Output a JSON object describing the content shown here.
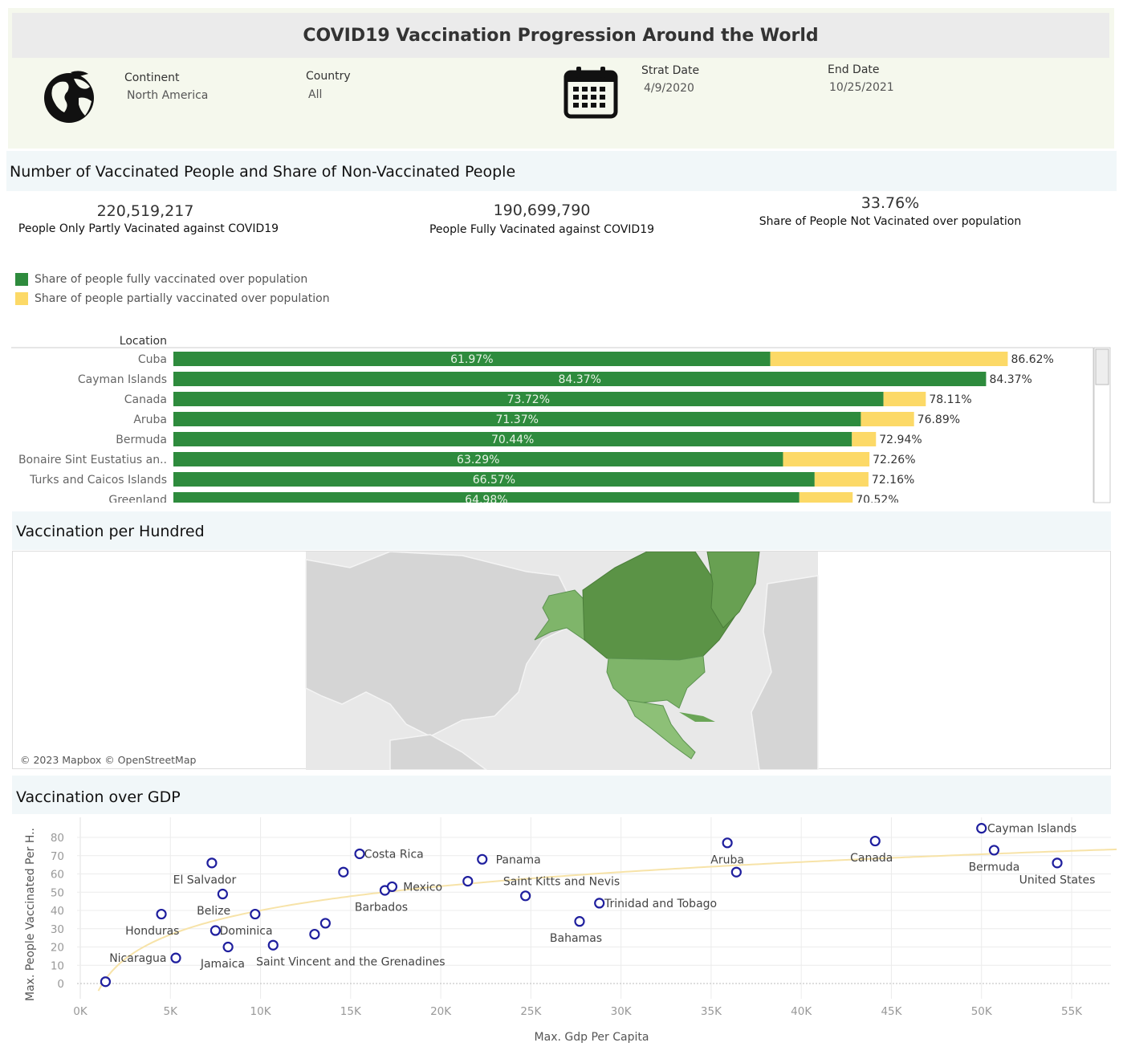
{
  "header": {
    "title": "COVID19 Vaccination Progression Around the World",
    "filters": {
      "continent_label": "Continent",
      "continent_value": "North America",
      "country_label": "Country",
      "country_value": "All",
      "start_label": "Strat Date",
      "start_value": "4/9/2020",
      "end_label": "End Date",
      "end_value": "10/25/2021"
    },
    "icons": [
      "globe-icon",
      "calendar-icon"
    ]
  },
  "section1": {
    "title": "Number  of Vaccinated People  and Share of Non-Vaccinated  People",
    "kpis": [
      {
        "value": "220,519,217",
        "caption": "People Only Partly Vacinated against COVID19"
      },
      {
        "value": "190,699,790",
        "caption": "People Fully Vacinated against COVID19"
      },
      {
        "value": "33.76%",
        "caption": "Share of People Not Vacinated over population"
      }
    ],
    "legend": [
      {
        "label": "Share of people fully vaccinated over population",
        "color": "#2e8b3d"
      },
      {
        "label": "Share of people partially vaccinated over population",
        "color": "#fcd967"
      }
    ]
  },
  "chart_data": [
    {
      "type": "bar",
      "orientation": "horizontal",
      "stacked": true,
      "axis_header": "Location",
      "categories": [
        "Cuba",
        "Cayman Islands",
        "Canada",
        "Aruba",
        "Bermuda",
        "Bonaire Sint Eustatius an..",
        "Turks and Caicos Islands",
        "Greenland"
      ],
      "series": [
        {
          "name": "Share of people fully vaccinated over population",
          "values": [
            61.97,
            84.37,
            73.72,
            71.37,
            70.44,
            63.29,
            66.57,
            64.98
          ],
          "labels": [
            "61.97%",
            "84.37%",
            "73.72%",
            "71.37%",
            "70.44%",
            "63.29%",
            "66.57%",
            "64.98%"
          ],
          "color": "#2e8b3d"
        },
        {
          "name": "Share of people partially vaccinated over population",
          "totals": [
            86.62,
            84.37,
            78.11,
            76.89,
            72.94,
            72.26,
            72.16,
            70.52
          ],
          "total_labels": [
            "86.62%",
            "84.37%",
            "78.11%",
            "76.89%",
            "72.94%",
            "72.26%",
            "72.16%",
            "70.52%"
          ],
          "color": "#fcd967"
        }
      ],
      "xlim": [
        0,
        100
      ]
    },
    {
      "type": "scatter",
      "title": "Vaccination over GDP",
      "xlabel": "Max. Gdp Per Capita",
      "ylabel": "Max. People Vaccinated Per H..",
      "xlim": [
        0,
        57000
      ],
      "ylim": [
        -5,
        87
      ],
      "xticks": [
        0,
        5000,
        10000,
        15000,
        20000,
        25000,
        30000,
        35000,
        40000,
        45000,
        50000,
        55000
      ],
      "xtick_labels": [
        "0K",
        "5K",
        "10K",
        "15K",
        "20K",
        "25K",
        "30K",
        "35K",
        "40K",
        "45K",
        "50K",
        "55K"
      ],
      "yticks": [
        0,
        10,
        20,
        30,
        40,
        50,
        60,
        70,
        80
      ],
      "yticks_labels": [
        "0",
        "10",
        "20",
        "30",
        "40",
        "50",
        "60",
        "70",
        "80"
      ],
      "trend": "logarithmic",
      "trend_color": "#f7e3a8",
      "point_color": "#1f1f9e",
      "points": [
        {
          "x": 1400,
          "y": 1,
          "label": ""
        },
        {
          "x": 5300,
          "y": 14,
          "label": ""
        },
        {
          "x": 4500,
          "y": 38,
          "label": ""
        },
        {
          "x": 7300,
          "y": 66,
          "label": ""
        },
        {
          "x": 7500,
          "y": 29,
          "label": ""
        },
        {
          "x": 7900,
          "y": 49,
          "label": ""
        },
        {
          "x": 8200,
          "y": 20,
          "label": ""
        },
        {
          "x": 9700,
          "y": 38,
          "label": ""
        },
        {
          "x": 10700,
          "y": 21,
          "label": ""
        },
        {
          "x": 13000,
          "y": 27,
          "label": ""
        },
        {
          "x": 13600,
          "y": 33,
          "label": ""
        },
        {
          "x": 14600,
          "y": 61,
          "label": ""
        },
        {
          "x": 15500,
          "y": 71,
          "label": ""
        },
        {
          "x": 16900,
          "y": 51,
          "label": ""
        },
        {
          "x": 17300,
          "y": 53,
          "label": ""
        },
        {
          "x": 21500,
          "y": 56,
          "label": ""
        },
        {
          "x": 22300,
          "y": 68,
          "label": ""
        },
        {
          "x": 24700,
          "y": 48,
          "label": ""
        },
        {
          "x": 27700,
          "y": 34,
          "label": ""
        },
        {
          "x": 28800,
          "y": 44,
          "label": ""
        },
        {
          "x": 35900,
          "y": 77,
          "label": ""
        },
        {
          "x": 36400,
          "y": 61,
          "label": ""
        },
        {
          "x": 44100,
          "y": 78,
          "label": ""
        },
        {
          "x": 50000,
          "y": 85,
          "label": ""
        },
        {
          "x": 50700,
          "y": 73,
          "label": ""
        },
        {
          "x": 54200,
          "y": 66,
          "label": ""
        }
      ],
      "annotations": [
        {
          "text": "Nicaragua",
          "x": 3200,
          "y": 14
        },
        {
          "text": "Honduras",
          "x": 4000,
          "y": 29
        },
        {
          "text": "El Salvador",
          "x": 6900,
          "y": 57
        },
        {
          "text": "Belize",
          "x": 7400,
          "y": 40
        },
        {
          "text": "Dominica",
          "x": 9200,
          "y": 29
        },
        {
          "text": "Jamaica",
          "x": 7900,
          "y": 11
        },
        {
          "text": "Saint Vincent and the Grenadines",
          "x": 15000,
          "y": 12
        },
        {
          "text": "Costa Rica",
          "x": 17400,
          "y": 71
        },
        {
          "text": "Mexico",
          "x": 19000,
          "y": 53
        },
        {
          "text": "Barbados",
          "x": 16700,
          "y": 42
        },
        {
          "text": "Panama",
          "x": 24300,
          "y": 68
        },
        {
          "text": "Saint Kitts and Nevis",
          "x": 26700,
          "y": 56
        },
        {
          "text": "Trinidad and Tobago",
          "x": 32200,
          "y": 44
        },
        {
          "text": "Bahamas",
          "x": 27500,
          "y": 25
        },
        {
          "text": "Aruba",
          "x": 35900,
          "y": 68
        },
        {
          "text": "Canada",
          "x": 43900,
          "y": 69
        },
        {
          "text": "Cayman Islands",
          "x": 52800,
          "y": 85
        },
        {
          "text": "Bermuda",
          "x": 50700,
          "y": 64
        },
        {
          "text": "United States",
          "x": 54200,
          "y": 57
        }
      ]
    }
  ],
  "section2": {
    "title": "Vaccination per Hundred",
    "credit": "© 2023 Mapbox © OpenStreetMap"
  },
  "section3": {
    "title": "Vaccination over GDP"
  }
}
